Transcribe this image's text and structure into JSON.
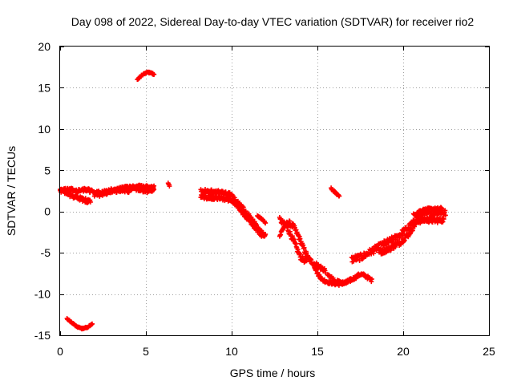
{
  "chart_data": {
    "type": "scatter",
    "title": "Day 098 of 2022, Sidereal Day-to-day VTEC variation (SDTVAR) for receiver rio2",
    "xlabel": "GPS time / hours",
    "ylabel": "SDTVAR / TECUs",
    "xlim": [
      0,
      25
    ],
    "ylim": [
      -15,
      20
    ],
    "x_ticks": [
      0,
      5,
      10,
      15,
      20,
      25
    ],
    "y_ticks": [
      -15,
      -10,
      -5,
      0,
      5,
      10,
      15,
      20
    ],
    "grid": true,
    "marker": "+",
    "series": [
      {
        "name": "rio2",
        "color": "#ff0000",
        "segments": [
          {
            "band": 0.5,
            "points": [
              [
                0.0,
                2.6
              ],
              [
                0.3,
                2.4
              ],
              [
                0.6,
                2.0
              ],
              [
                1.0,
                1.7
              ],
              [
                1.4,
                1.4
              ],
              [
                1.8,
                1.2
              ]
            ]
          },
          {
            "band": 0.4,
            "points": [
              [
                0.0,
                2.5
              ],
              [
                0.5,
                2.7
              ],
              [
                1.0,
                2.5
              ],
              [
                1.5,
                2.7
              ],
              [
                2.0,
                2.3
              ],
              [
                2.5,
                2.3
              ],
              [
                3.0,
                2.5
              ],
              [
                3.5,
                2.8
              ],
              [
                4.0,
                2.9
              ],
              [
                4.5,
                3.0
              ],
              [
                5.0,
                3.0
              ],
              [
                5.5,
                2.9
              ]
            ]
          },
          {
            "band": 0.6,
            "points": [
              [
                2.0,
                2.0
              ],
              [
                2.5,
                2.2
              ],
              [
                3.0,
                2.6
              ],
              [
                3.5,
                2.5
              ],
              [
                4.0,
                2.6
              ],
              [
                4.5,
                2.8
              ],
              [
                5.0,
                2.5
              ],
              [
                5.5,
                2.7
              ]
            ]
          },
          {
            "band": 0.15,
            "points": [
              [
                6.3,
                3.4
              ],
              [
                6.4,
                3.0
              ]
            ]
          },
          {
            "band": 0.15,
            "points": [
              [
                0.4,
                -13.0
              ],
              [
                0.7,
                -13.5
              ],
              [
                1.0,
                -14.0
              ],
              [
                1.3,
                -14.2
              ],
              [
                1.6,
                -14.0
              ],
              [
                1.9,
                -13.6
              ]
            ]
          },
          {
            "band": 0.15,
            "points": [
              [
                4.5,
                16.0
              ],
              [
                4.8,
                16.6
              ],
              [
                5.1,
                16.9
              ],
              [
                5.4,
                16.7
              ],
              [
                5.5,
                16.5
              ]
            ]
          },
          {
            "band": 0.5,
            "points": [
              [
                8.2,
                2.5
              ],
              [
                8.8,
                2.4
              ],
              [
                9.4,
                2.3
              ],
              [
                10.0,
                2.0
              ],
              [
                10.4,
                1.0
              ],
              [
                10.8,
                0.0
              ],
              [
                11.2,
                -1.0
              ],
              [
                11.6,
                -2.3
              ],
              [
                12.0,
                -3.0
              ]
            ]
          },
          {
            "band": 0.5,
            "points": [
              [
                8.2,
                1.8
              ],
              [
                8.8,
                1.7
              ],
              [
                9.4,
                1.6
              ],
              [
                10.0,
                1.4
              ],
              [
                10.6,
                0.0
              ],
              [
                11.0,
                -1.0
              ],
              [
                11.4,
                -2.0
              ],
              [
                11.8,
                -3.0
              ]
            ]
          },
          {
            "band": 0.15,
            "points": [
              [
                11.5,
                -0.5
              ],
              [
                11.8,
                -1.0
              ],
              [
                12.0,
                -1.4
              ]
            ]
          },
          {
            "band": 0.6,
            "points": [
              [
                12.8,
                -3.0
              ],
              [
                13.0,
                -2.0
              ],
              [
                13.3,
                -1.3
              ],
              [
                13.6,
                -1.8
              ],
              [
                13.9,
                -3.0
              ],
              [
                14.2,
                -4.5
              ],
              [
                14.5,
                -5.8
              ],
              [
                14.8,
                -6.3
              ],
              [
                15.2,
                -6.8
              ],
              [
                15.5,
                -7.2
              ]
            ]
          },
          {
            "band": 0.6,
            "points": [
              [
                12.8,
                -1.0
              ],
              [
                13.2,
                -1.8
              ],
              [
                13.6,
                -3.5
              ],
              [
                14.0,
                -5.5
              ],
              [
                14.4,
                -6.2
              ]
            ]
          },
          {
            "band": 0.2,
            "points": [
              [
                15.8,
                2.8
              ],
              [
                16.0,
                2.4
              ],
              [
                16.2,
                2.0
              ],
              [
                16.3,
                1.9
              ]
            ]
          },
          {
            "band": 0.4,
            "points": [
              [
                14.8,
                -6.5
              ],
              [
                15.0,
                -7.5
              ],
              [
                15.3,
                -8.3
              ],
              [
                15.7,
                -8.6
              ],
              [
                16.2,
                -8.8
              ],
              [
                16.7,
                -8.6
              ],
              [
                17.2,
                -8.0
              ],
              [
                17.5,
                -7.6
              ],
              [
                17.8,
                -7.8
              ],
              [
                18.2,
                -8.4
              ]
            ]
          },
          {
            "band": 0.4,
            "points": [
              [
                15.6,
                -7.5
              ],
              [
                16.0,
                -8.4
              ],
              [
                16.5,
                -8.7
              ],
              [
                17.0,
                -8.2
              ]
            ]
          },
          {
            "band": 0.8,
            "points": [
              [
                17.0,
                -5.8
              ],
              [
                17.6,
                -5.5
              ],
              [
                18.0,
                -5.0
              ],
              [
                18.5,
                -4.4
              ],
              [
                19.0,
                -3.8
              ],
              [
                19.5,
                -3.3
              ],
              [
                20.0,
                -2.5
              ],
              [
                20.5,
                -1.6
              ],
              [
                21.0,
                -0.5
              ],
              [
                21.5,
                -0.3
              ],
              [
                22.0,
                0.0
              ],
              [
                22.5,
                -0.2
              ]
            ]
          },
          {
            "band": 0.6,
            "points": [
              [
                18.6,
                -5.0
              ],
              [
                19.2,
                -4.5
              ],
              [
                19.8,
                -3.8
              ],
              [
                20.3,
                -2.8
              ],
              [
                20.8,
                -1.2
              ],
              [
                21.3,
                -1.0
              ],
              [
                21.8,
                -1.1
              ],
              [
                22.4,
                -1.0
              ]
            ]
          },
          {
            "band": 0.3,
            "points": [
              [
                20.6,
                -0.4
              ],
              [
                21.0,
                0.1
              ],
              [
                21.5,
                0.3
              ],
              [
                22.0,
                0.3
              ],
              [
                22.3,
                0.4
              ]
            ]
          }
        ]
      }
    ]
  }
}
